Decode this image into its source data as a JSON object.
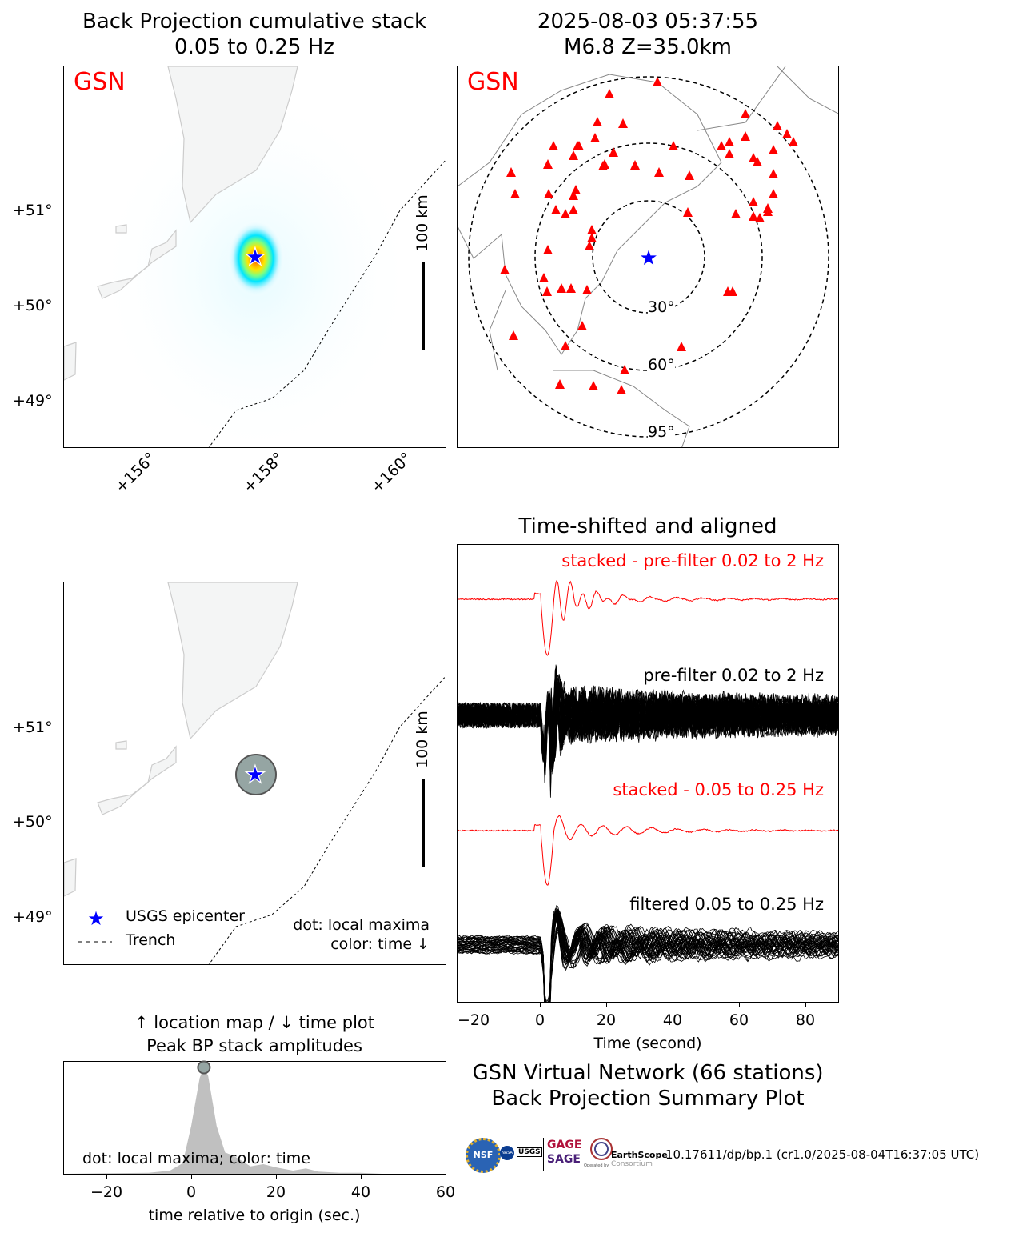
{
  "bp_map": {
    "title_line1": "Back Projection cumulative stack",
    "title_line2": "0.05 to 0.25 Hz",
    "network_label": "GSN",
    "scale_label": "100 km",
    "lat_ticks": [
      "+51°",
      "+50°",
      "+49°"
    ],
    "lon_ticks": [
      "+156°",
      "+158°",
      "+160°"
    ]
  },
  "event": {
    "title_line1": "2025-08-03 05:37:55",
    "title_line2": "M6.8 Z=35.0km",
    "network_label": "GSN",
    "ring_labels": [
      "30°",
      "60°",
      "95°"
    ]
  },
  "location_map": {
    "scale_label": "100 km",
    "lat_ticks": [
      "+51°",
      "+50°",
      "+49°"
    ],
    "legend": {
      "epicenter": "USGS epicenter",
      "trench": "Trench"
    },
    "note_line1": "dot: local maxima",
    "note_line2": "color: time ↓"
  },
  "waveforms": {
    "title": "Time-shifted and aligned",
    "labels": [
      "stacked - pre-filter 0.02 to 2 Hz",
      "pre-filter 0.02 to 2 Hz",
      "stacked - 0.05 to 0.25 Hz",
      "filtered 0.05 to 0.25 Hz"
    ],
    "xlabel": "Time (second)",
    "x_ticks": [
      "−20",
      "0",
      "20",
      "40",
      "60",
      "80"
    ]
  },
  "amplitude": {
    "title_line1": "↑ location map / ↓ time plot",
    "title_line2": "Peak BP stack amplitudes",
    "note": "dot: local maxima; color: time",
    "xlabel": "time relative to origin (sec.)",
    "x_ticks": [
      "−20",
      "0",
      "20",
      "40",
      "60"
    ]
  },
  "summary": {
    "line1": "GSN Virtual Network (66 stations)",
    "line2": "Back Projection Summary Plot",
    "doi": "10.17611/dp/bp.1 (cr1.0/2025-08-04T16:37:05 UTC)",
    "logos": {
      "nsf": "NSF",
      "nasa": "NASA",
      "usgs": "USGS",
      "gage": "GAGE",
      "sage": "SAGE",
      "earthscope": "EarthScope",
      "consortium": "Consortium",
      "operated": "Operated by"
    }
  },
  "colors": {
    "station": "#ff0000",
    "epicenter": "#0000ff",
    "stack": "#ff0000"
  },
  "chart_data": [
    {
      "type": "line",
      "title": "Peak BP stack amplitudes",
      "xlabel": "time relative to origin (sec.)",
      "xlim": [
        -30,
        60
      ],
      "x": [
        -30,
        -10,
        -5,
        -2,
        0,
        2,
        3,
        4,
        6,
        8,
        10,
        14,
        17,
        20,
        24,
        27,
        30,
        35,
        40,
        45,
        60
      ],
      "y": [
        0,
        0.01,
        0.03,
        0.1,
        0.45,
        0.9,
        1.0,
        0.92,
        0.45,
        0.2,
        0.17,
        0.07,
        0.09,
        0.06,
        0.03,
        0.05,
        0.02,
        0.01,
        0.01,
        0,
        0
      ],
      "local_maxima": [
        {
          "t": 3,
          "amp": 1.0
        }
      ]
    },
    {
      "type": "line",
      "title": "Time-shifted and aligned",
      "xlabel": "Time (second)",
      "xlim": [
        -26,
        90
      ],
      "series": [
        {
          "name": "stacked - pre-filter 0.02 to 2 Hz"
        },
        {
          "name": "pre-filter 0.02 to 2 Hz"
        },
        {
          "name": "stacked - 0.05 to 0.25 Hz"
        },
        {
          "name": "filtered 0.05 to 0.25 Hz"
        }
      ]
    }
  ]
}
